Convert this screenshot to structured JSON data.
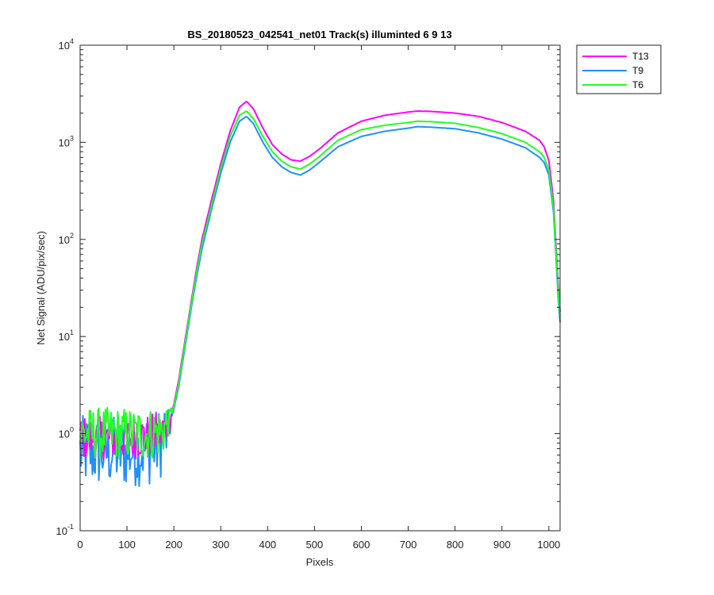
{
  "chart_data": {
    "type": "line",
    "title": "BS_20180523_042541_net01  Track(s) illuminted 6   9  13",
    "xlabel": "Pixels",
    "ylabel": "Net Signal (ADU/pix/sec)",
    "xlim": [
      0,
      1024
    ],
    "ylim": [
      0.1,
      10000
    ],
    "yscale": "log",
    "grid": false,
    "legend_position": "outside-top-right",
    "x_ticks": [
      {
        "value": 0,
        "label": "0"
      },
      {
        "value": 100,
        "label": "100"
      },
      {
        "value": 200,
        "label": "200"
      },
      {
        "value": 300,
        "label": "300"
      },
      {
        "value": 400,
        "label": "400"
      },
      {
        "value": 500,
        "label": "500"
      },
      {
        "value": 600,
        "label": "600"
      },
      {
        "value": 700,
        "label": "700"
      },
      {
        "value": 800,
        "label": "800"
      },
      {
        "value": 900,
        "label": "900"
      },
      {
        "value": 1000,
        "label": "1000"
      }
    ],
    "y_ticks": [
      {
        "value": 0.1,
        "base": "10",
        "exp": "-1"
      },
      {
        "value": 1,
        "base": "10",
        "exp": "0"
      },
      {
        "value": 10,
        "base": "10",
        "exp": "1"
      },
      {
        "value": 100,
        "base": "10",
        "exp": "2"
      },
      {
        "value": 1000,
        "base": "10",
        "exp": "3"
      },
      {
        "value": 10000,
        "base": "10",
        "exp": "4"
      }
    ],
    "series": [
      {
        "name": "T13",
        "color": "#ff00ff",
        "x": [
          0,
          50,
          100,
          150,
          170,
          180,
          190,
          200,
          210,
          220,
          230,
          240,
          250,
          260,
          280,
          300,
          320,
          340,
          355,
          370,
          390,
          410,
          430,
          450,
          470,
          490,
          510,
          550,
          600,
          650,
          700,
          720,
          750,
          800,
          850,
          900,
          950,
          980,
          990,
          1000,
          1010,
          1015,
          1020,
          1024
        ],
        "values": [
          0.9,
          0.9,
          0.9,
          0.95,
          1.0,
          1.1,
          1.3,
          2.0,
          3.5,
          7,
          14,
          28,
          55,
          100,
          250,
          600,
          1300,
          2300,
          2650,
          2200,
          1400,
          950,
          760,
          660,
          640,
          720,
          850,
          1250,
          1650,
          1900,
          2050,
          2100,
          2080,
          2000,
          1850,
          1600,
          1300,
          1050,
          900,
          650,
          250,
          90,
          35,
          18
        ]
      },
      {
        "name": "T9",
        "color": "#1e90ff",
        "x": [
          0,
          50,
          100,
          150,
          170,
          180,
          190,
          200,
          210,
          220,
          230,
          240,
          250,
          260,
          280,
          300,
          320,
          340,
          355,
          370,
          390,
          410,
          430,
          450,
          470,
          490,
          510,
          550,
          600,
          650,
          700,
          720,
          750,
          800,
          850,
          900,
          950,
          980,
          990,
          1000,
          1010,
          1015,
          1020,
          1024
        ],
        "values": [
          0.65,
          0.65,
          0.65,
          0.7,
          0.8,
          0.95,
          1.2,
          1.8,
          3.0,
          6,
          12,
          24,
          45,
          80,
          200,
          480,
          1000,
          1650,
          1850,
          1550,
          1000,
          700,
          560,
          490,
          460,
          520,
          620,
          900,
          1150,
          1300,
          1400,
          1450,
          1430,
          1380,
          1250,
          1080,
          880,
          700,
          620,
          460,
          190,
          70,
          25,
          14
        ]
      },
      {
        "name": "T6",
        "color": "#22ff22",
        "x": [
          0,
          50,
          100,
          150,
          170,
          180,
          190,
          200,
          210,
          220,
          230,
          240,
          250,
          260,
          280,
          300,
          320,
          340,
          355,
          370,
          390,
          410,
          430,
          450,
          470,
          490,
          510,
          550,
          600,
          650,
          700,
          720,
          750,
          800,
          850,
          900,
          950,
          980,
          990,
          1000,
          1010,
          1015,
          1020,
          1024
        ],
        "values": [
          1.0,
          1.0,
          1.0,
          1.0,
          1.05,
          1.15,
          1.3,
          1.9,
          3.2,
          6.5,
          13,
          26,
          50,
          90,
          220,
          540,
          1150,
          1900,
          2100,
          1750,
          1150,
          800,
          640,
          560,
          530,
          600,
          710,
          1050,
          1350,
          1500,
          1600,
          1650,
          1630,
          1570,
          1420,
          1230,
          1000,
          800,
          700,
          520,
          210,
          80,
          30,
          16
        ]
      }
    ],
    "legend_order": [
      "T13",
      "T9",
      "T6"
    ]
  }
}
